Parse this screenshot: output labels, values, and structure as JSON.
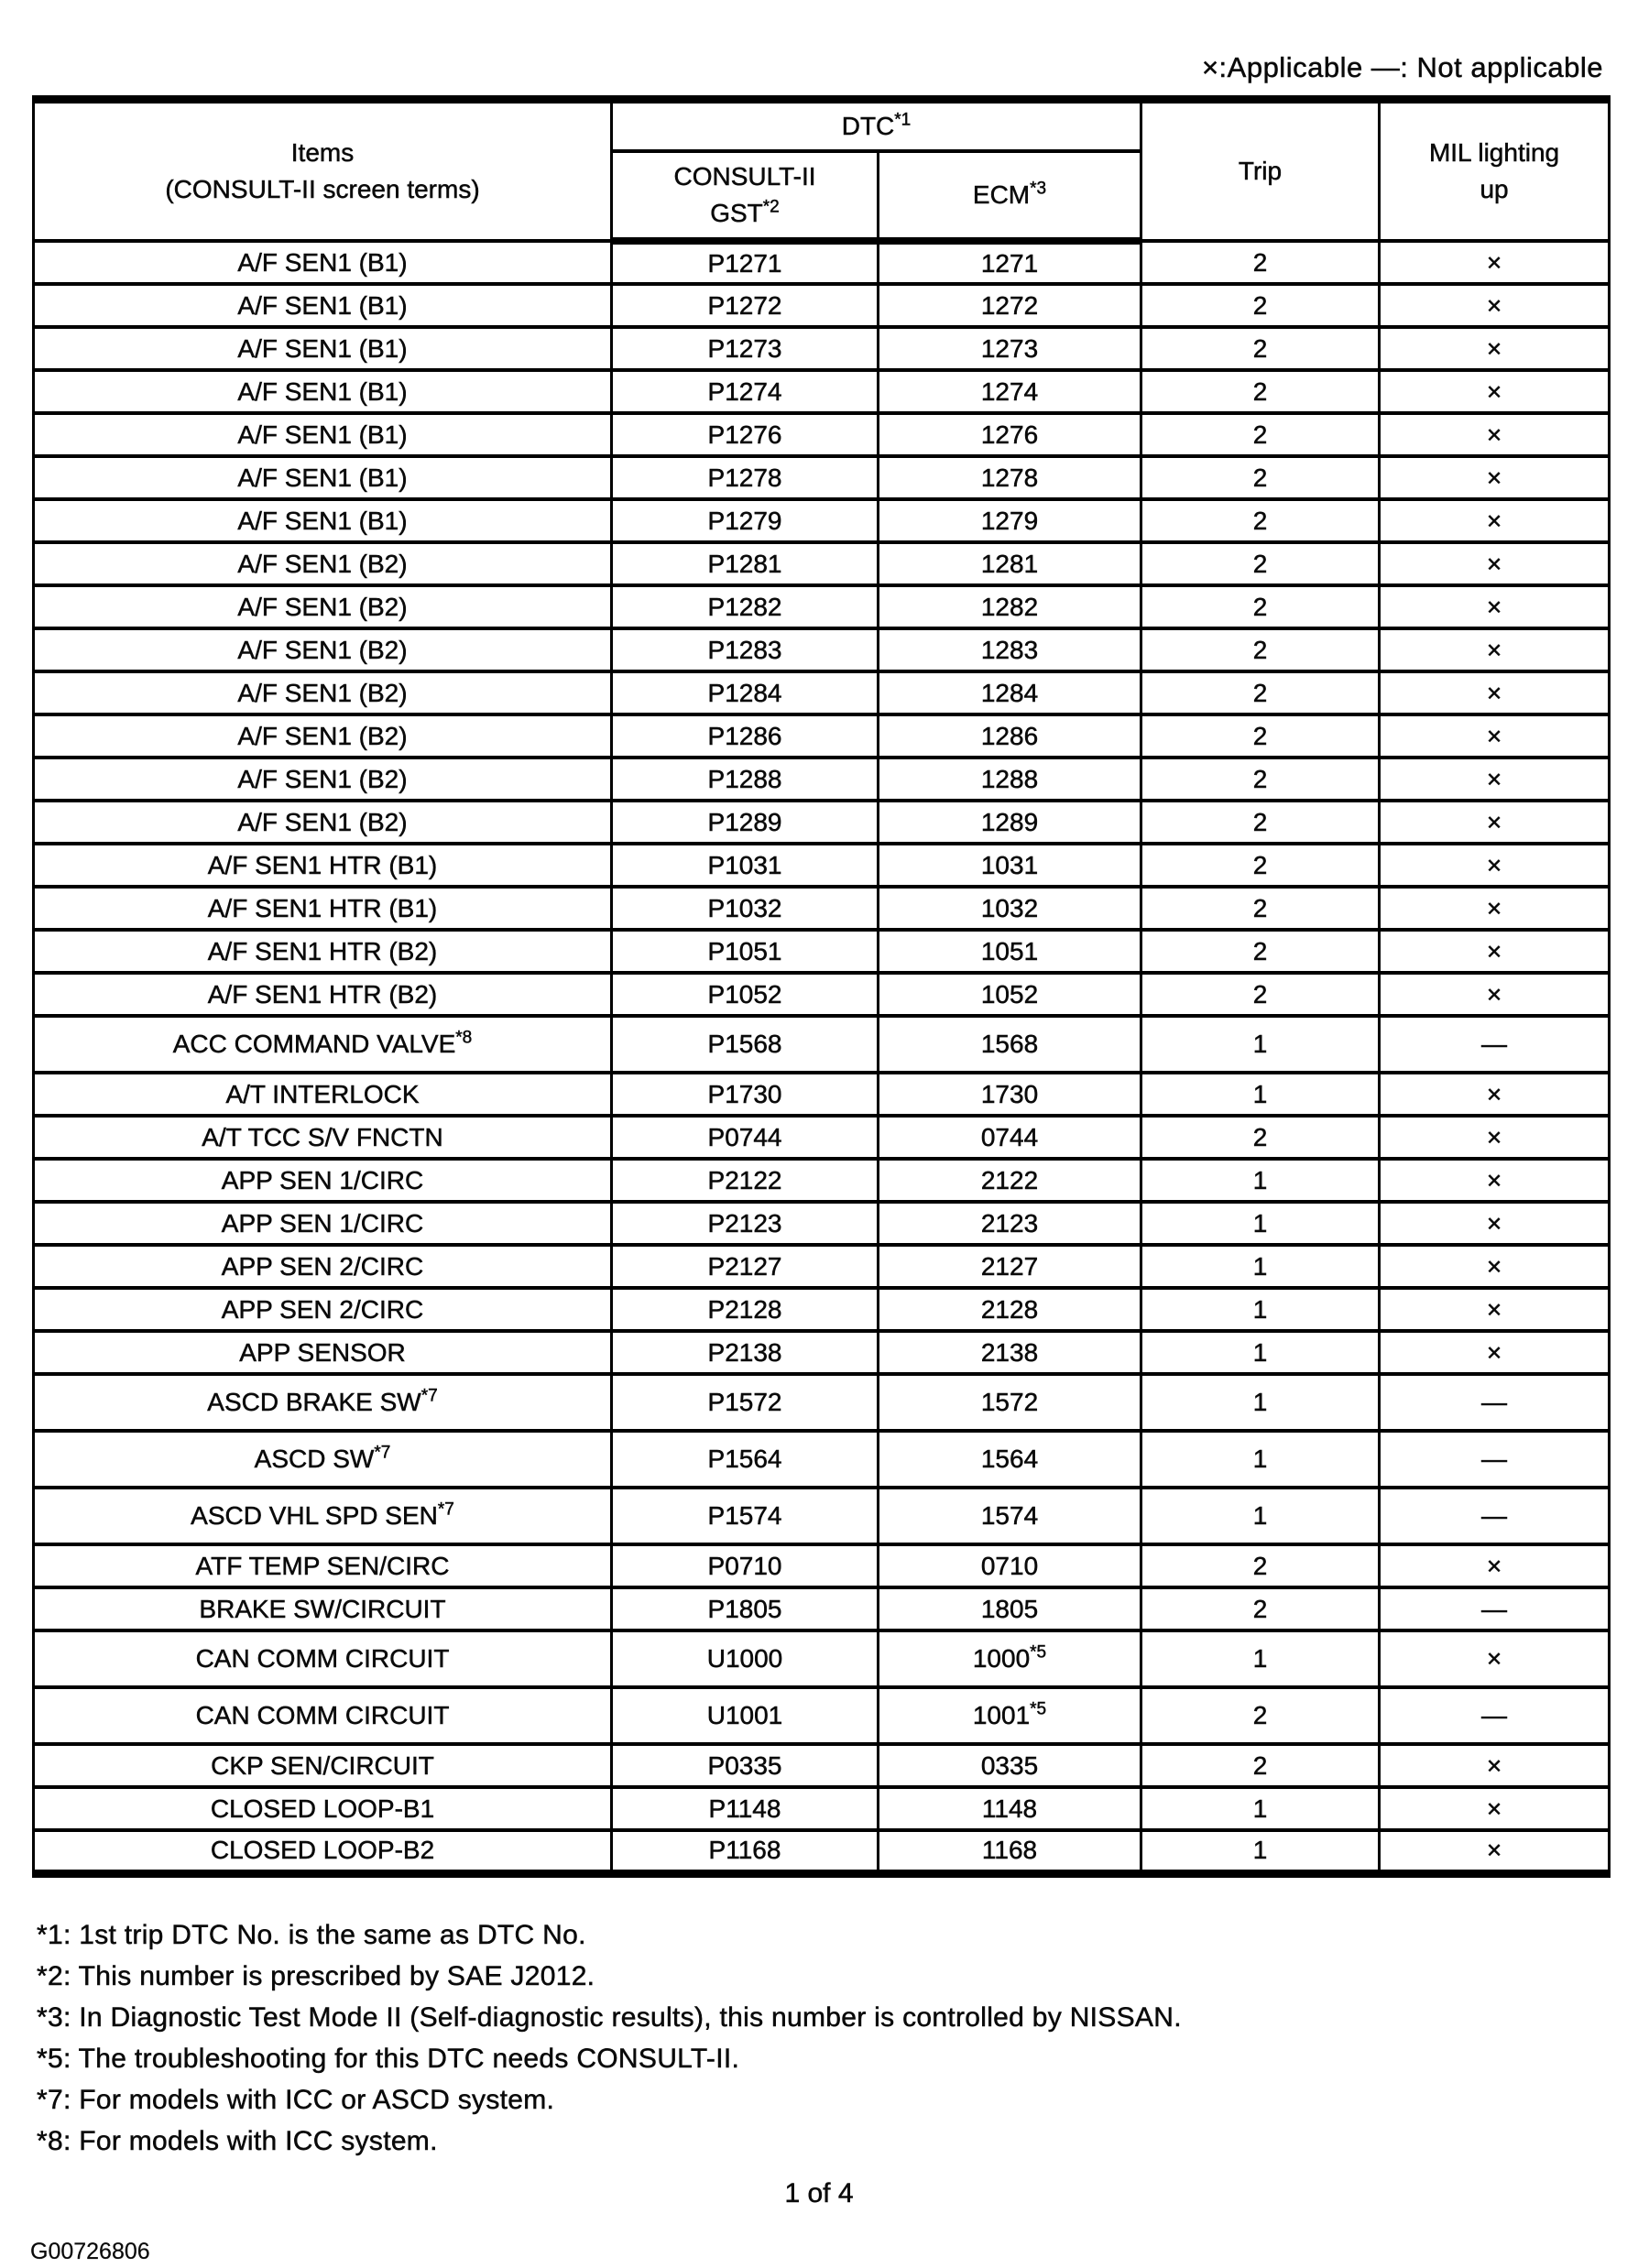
{
  "legend": "×:Applicable —: Not applicable",
  "table": {
    "header": {
      "items_line1": "Items",
      "items_line2": "(CONSULT-II screen terms)",
      "dtc": "DTC",
      "dtc_sup": "*1",
      "gst_line1": "CONSULT-II",
      "gst_line2": "GST",
      "gst_sup": "*2",
      "ecm": "ECM",
      "ecm_sup": "*3",
      "trip": "Trip",
      "mil_line1": "MIL lighting",
      "mil_line2": "up"
    },
    "rows": [
      {
        "item": "A/F SEN1 (B1)",
        "gst": "P1271",
        "ecm": "1271",
        "trip": "2",
        "mil": "×"
      },
      {
        "item": "A/F SEN1 (B1)",
        "gst": "P1272",
        "ecm": "1272",
        "trip": "2",
        "mil": "×"
      },
      {
        "item": "A/F SEN1 (B1)",
        "gst": "P1273",
        "ecm": "1273",
        "trip": "2",
        "mil": "×"
      },
      {
        "item": "A/F SEN1 (B1)",
        "gst": "P1274",
        "ecm": "1274",
        "trip": "2",
        "mil": "×"
      },
      {
        "item": "A/F SEN1 (B1)",
        "gst": "P1276",
        "ecm": "1276",
        "trip": "2",
        "mil": "×"
      },
      {
        "item": "A/F SEN1 (B1)",
        "gst": "P1278",
        "ecm": "1278",
        "trip": "2",
        "mil": "×"
      },
      {
        "item": "A/F SEN1 (B1)",
        "gst": "P1279",
        "ecm": "1279",
        "trip": "2",
        "mil": "×"
      },
      {
        "item": "A/F SEN1 (B2)",
        "gst": "P1281",
        "ecm": "1281",
        "trip": "2",
        "mil": "×"
      },
      {
        "item": "A/F SEN1 (B2)",
        "gst": "P1282",
        "ecm": "1282",
        "trip": "2",
        "mil": "×"
      },
      {
        "item": "A/F SEN1 (B2)",
        "gst": "P1283",
        "ecm": "1283",
        "trip": "2",
        "mil": "×"
      },
      {
        "item": "A/F SEN1 (B2)",
        "gst": "P1284",
        "ecm": "1284",
        "trip": "2",
        "mil": "×"
      },
      {
        "item": "A/F SEN1 (B2)",
        "gst": "P1286",
        "ecm": "1286",
        "trip": "2",
        "mil": "×"
      },
      {
        "item": "A/F SEN1 (B2)",
        "gst": "P1288",
        "ecm": "1288",
        "trip": "2",
        "mil": "×"
      },
      {
        "item": "A/F SEN1 (B2)",
        "gst": "P1289",
        "ecm": "1289",
        "trip": "2",
        "mil": "×"
      },
      {
        "item": "A/F SEN1 HTR (B1)",
        "gst": "P1031",
        "ecm": "1031",
        "trip": "2",
        "mil": "×"
      },
      {
        "item": "A/F SEN1 HTR (B1)",
        "gst": "P1032",
        "ecm": "1032",
        "trip": "2",
        "mil": "×"
      },
      {
        "item": "A/F SEN1 HTR (B2)",
        "gst": "P1051",
        "ecm": "1051",
        "trip": "2",
        "mil": "×"
      },
      {
        "item": "A/F SEN1 HTR (B2)",
        "gst": "P1052",
        "ecm": "1052",
        "trip": "2",
        "mil": "×"
      },
      {
        "item": "ACC COMMAND VALVE",
        "item_sup": "*8",
        "gst": "P1568",
        "ecm": "1568",
        "trip": "1",
        "mil": "—"
      },
      {
        "item": "A/T INTERLOCK",
        "gst": "P1730",
        "ecm": "1730",
        "trip": "1",
        "mil": "×"
      },
      {
        "item": "A/T TCC S/V FNCTN",
        "gst": "P0744",
        "ecm": "0744",
        "trip": "2",
        "mil": "×"
      },
      {
        "item": "APP SEN 1/CIRC",
        "gst": "P2122",
        "ecm": "2122",
        "trip": "1",
        "mil": "×"
      },
      {
        "item": "APP SEN 1/CIRC",
        "gst": "P2123",
        "ecm": "2123",
        "trip": "1",
        "mil": "×"
      },
      {
        "item": "APP SEN 2/CIRC",
        "gst": "P2127",
        "ecm": "2127",
        "trip": "1",
        "mil": "×"
      },
      {
        "item": "APP SEN 2/CIRC",
        "gst": "P2128",
        "ecm": "2128",
        "trip": "1",
        "mil": "×"
      },
      {
        "item": "APP SENSOR",
        "gst": "P2138",
        "ecm": "2138",
        "trip": "1",
        "mil": "×"
      },
      {
        "item": "ASCD BRAKE SW",
        "item_sup": "*7",
        "gst": "P1572",
        "ecm": "1572",
        "trip": "1",
        "mil": "—"
      },
      {
        "item": "ASCD SW",
        "item_sup": "*7",
        "gst": "P1564",
        "ecm": "1564",
        "trip": "1",
        "mil": "—"
      },
      {
        "item": "ASCD VHL SPD SEN",
        "item_sup": "*7",
        "gst": "P1574",
        "ecm": "1574",
        "trip": "1",
        "mil": "—"
      },
      {
        "item": "ATF TEMP SEN/CIRC",
        "gst": "P0710",
        "ecm": "0710",
        "trip": "2",
        "mil": "×"
      },
      {
        "item": "BRAKE SW/CIRCUIT",
        "gst": "P1805",
        "ecm": "1805",
        "trip": "2",
        "mil": "—"
      },
      {
        "item": "CAN COMM CIRCUIT",
        "gst": "U1000",
        "ecm": "1000",
        "ecm_sup": "*5",
        "trip": "1",
        "mil": "×"
      },
      {
        "item": "CAN COMM CIRCUIT",
        "gst": "U1001",
        "ecm": "1001",
        "ecm_sup": "*5",
        "trip": "2",
        "mil": "—"
      },
      {
        "item": "CKP SEN/CIRCUIT",
        "gst": "P0335",
        "ecm": "0335",
        "trip": "2",
        "mil": "×"
      },
      {
        "item": "CLOSED LOOP-B1",
        "gst": "P1148",
        "ecm": "1148",
        "trip": "1",
        "mil": "×"
      },
      {
        "item": "CLOSED LOOP-B2",
        "gst": "P1168",
        "ecm": "1168",
        "trip": "1",
        "mil": "×"
      }
    ]
  },
  "footnotes": [
    "*1: 1st trip DTC No. is the same as DTC No.",
    "*2: This number is prescribed by SAE J2012.",
    "*3: In Diagnostic Test Mode II (Self-diagnostic results), this number is controlled by NISSAN.",
    "*5: The troubleshooting for this DTC needs CONSULT-II.",
    "*7: For models with ICC or ASCD system.",
    "*8: For models with ICC system."
  ],
  "page_number": "1 of 4",
  "figure_code": "G00726806"
}
